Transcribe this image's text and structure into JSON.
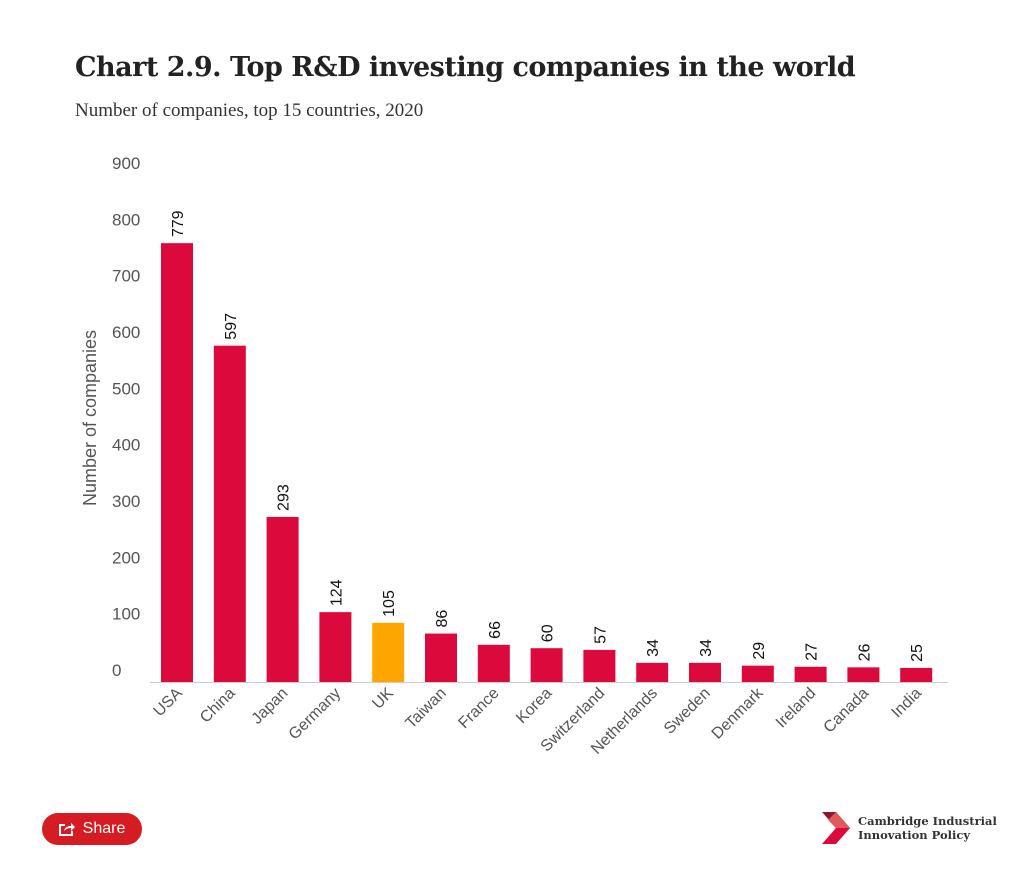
{
  "header": {
    "title": "Chart 2.9. Top R&D investing companies in the world",
    "subtitle": "Number of companies, top 15 countries, 2020"
  },
  "chart_data": {
    "type": "bar",
    "categories": [
      "USA",
      "China",
      "Japan",
      "Germany",
      "UK",
      "Taiwan",
      "France",
      "Korea",
      "Switzerland",
      "Netherlands",
      "Sweden",
      "Denmark",
      "Ireland",
      "Canada",
      "India"
    ],
    "values": [
      779,
      597,
      293,
      124,
      105,
      86,
      66,
      60,
      57,
      34,
      34,
      29,
      27,
      26,
      25
    ],
    "ylabel": "Number of companies",
    "ylim": [
      0,
      900
    ],
    "yticks": [
      0,
      100,
      200,
      300,
      400,
      500,
      600,
      700,
      800,
      900
    ],
    "grid": false,
    "colors": {
      "default": "#dc0a3c",
      "highlight": "#ffa500"
    },
    "highlight": "UK"
  },
  "footer": {
    "share_label": "Share",
    "share_icon": "share-icon",
    "logo_line1": "Cambridge Industrial",
    "logo_line2": "Innovation Policy"
  }
}
